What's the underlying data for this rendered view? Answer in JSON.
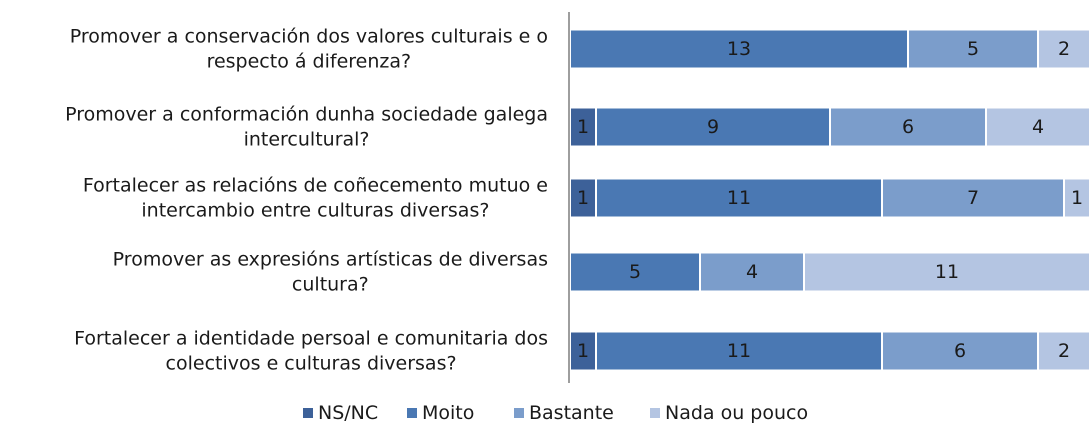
{
  "chart_data": {
    "type": "bar",
    "orientation": "horizontal",
    "stacked": true,
    "categories": [
      [
        "Promover a conservación dos valores culturais e o",
        "respecto á diferenza?"
      ],
      [
        "Promover a conformación dunha sociedade galega",
        "intercultural?"
      ],
      [
        "Fortalecer as relacións de coñecemento mutuo e",
        "intercambio entre culturas diversas?"
      ],
      [
        "Promover as expresións artísticas de diversas",
        "cultura?"
      ],
      [
        "Fortalecer a identidade persoal e comunitaria dos",
        "colectivos e culturas diversas?"
      ]
    ],
    "series": [
      {
        "name": "NS/NC",
        "color": "#3d6199",
        "values": [
          0,
          1,
          1,
          0,
          1
        ]
      },
      {
        "name": "Moito",
        "color": "#4a78b3",
        "values": [
          13,
          9,
          11,
          5,
          11
        ]
      },
      {
        "name": "Bastante",
        "color": "#7b9dcb",
        "values": [
          5,
          6,
          7,
          4,
          6
        ]
      },
      {
        "name": "Nada ou pouco",
        "color": "#b4c5e2",
        "values": [
          2,
          4,
          1,
          11,
          2
        ]
      }
    ],
    "xlim": [
      0,
      20
    ],
    "legend_position": "bottom",
    "grid": false
  }
}
